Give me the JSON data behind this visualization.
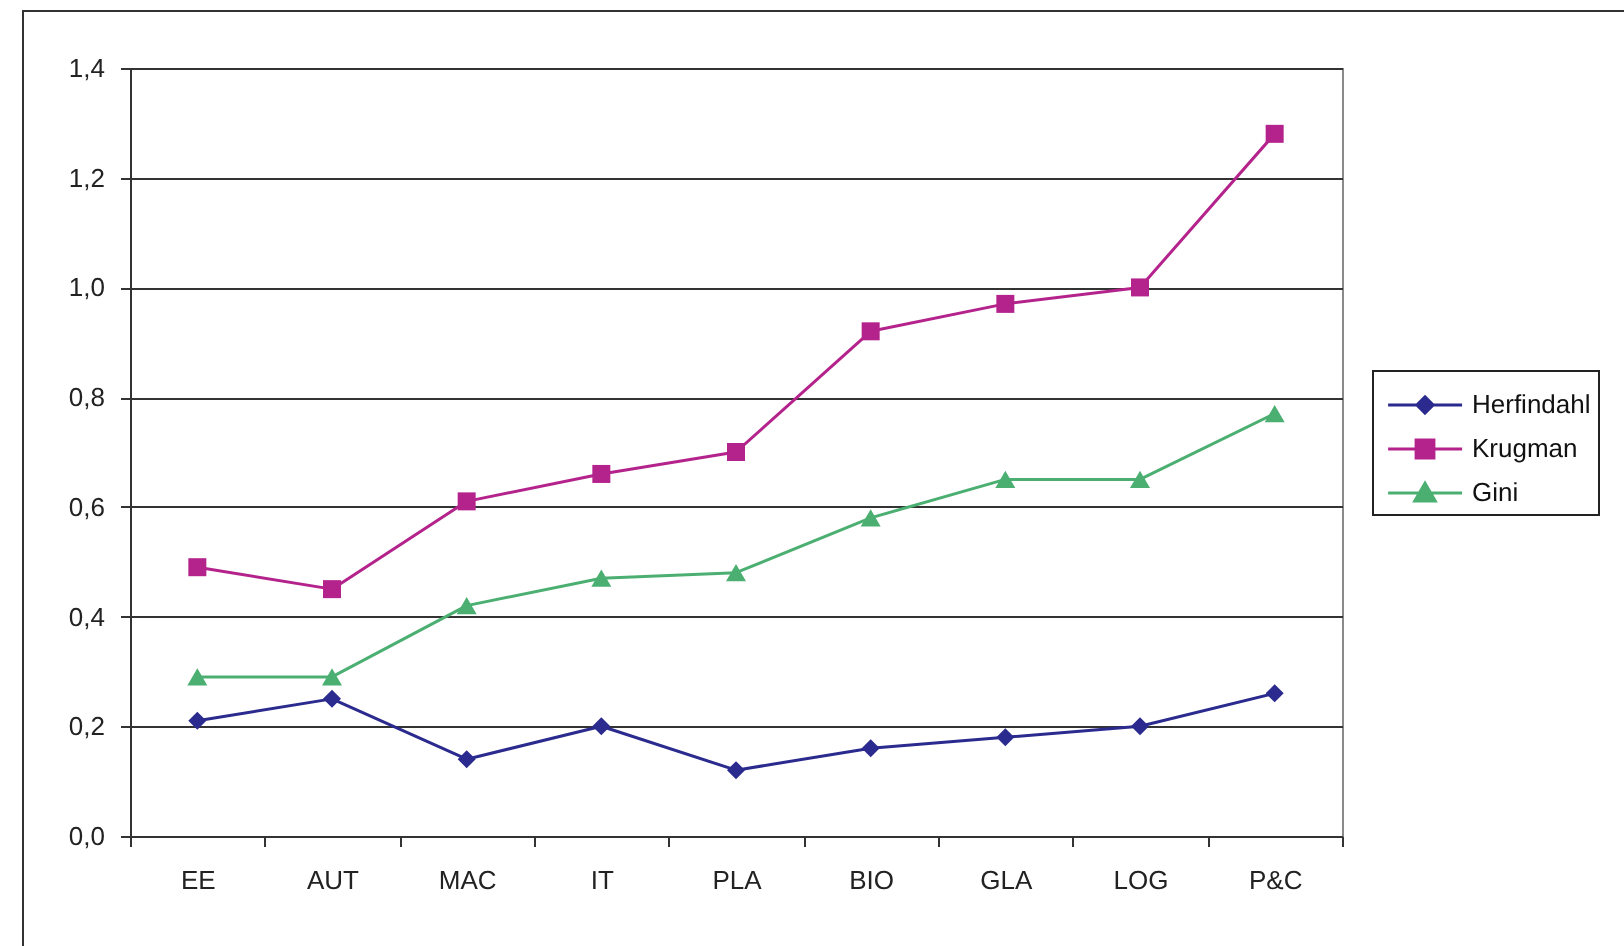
{
  "chart_data": {
    "type": "line",
    "categories": [
      "EE",
      "AUT",
      "MAC",
      "IT",
      "PLA",
      "BIO",
      "GLA",
      "LOG",
      "P&C"
    ],
    "series": [
      {
        "name": "Herfindahl",
        "color": "#2b2a8e",
        "marker": "diamond",
        "values": [
          0.21,
          0.25,
          0.14,
          0.2,
          0.12,
          0.16,
          0.18,
          0.2,
          0.26
        ]
      },
      {
        "name": "Krugman",
        "color": "#b4238c",
        "marker": "square",
        "values": [
          0.49,
          0.45,
          0.61,
          0.66,
          0.7,
          0.92,
          0.97,
          1.0,
          1.28
        ]
      },
      {
        "name": "Gini",
        "color": "#4caf72",
        "marker": "triangle",
        "values": [
          0.29,
          0.29,
          0.42,
          0.47,
          0.48,
          0.58,
          0.65,
          0.65,
          0.77
        ]
      }
    ],
    "ylim": [
      0,
      1.4
    ],
    "yticks": [
      {
        "value": 0,
        "label": "0,0"
      },
      {
        "value": 0.2,
        "label": "0,2"
      },
      {
        "value": 0.4,
        "label": "0,4"
      },
      {
        "value": 0.6,
        "label": "0,6"
      },
      {
        "value": 0.8,
        "label": "0,8"
      },
      {
        "value": 1,
        "label": "1,0"
      },
      {
        "value": 1.2,
        "label": "1,2"
      },
      {
        "value": 1.4,
        "label": "1,4"
      }
    ],
    "grid": "y",
    "legend": "right",
    "line_style": "solid"
  }
}
